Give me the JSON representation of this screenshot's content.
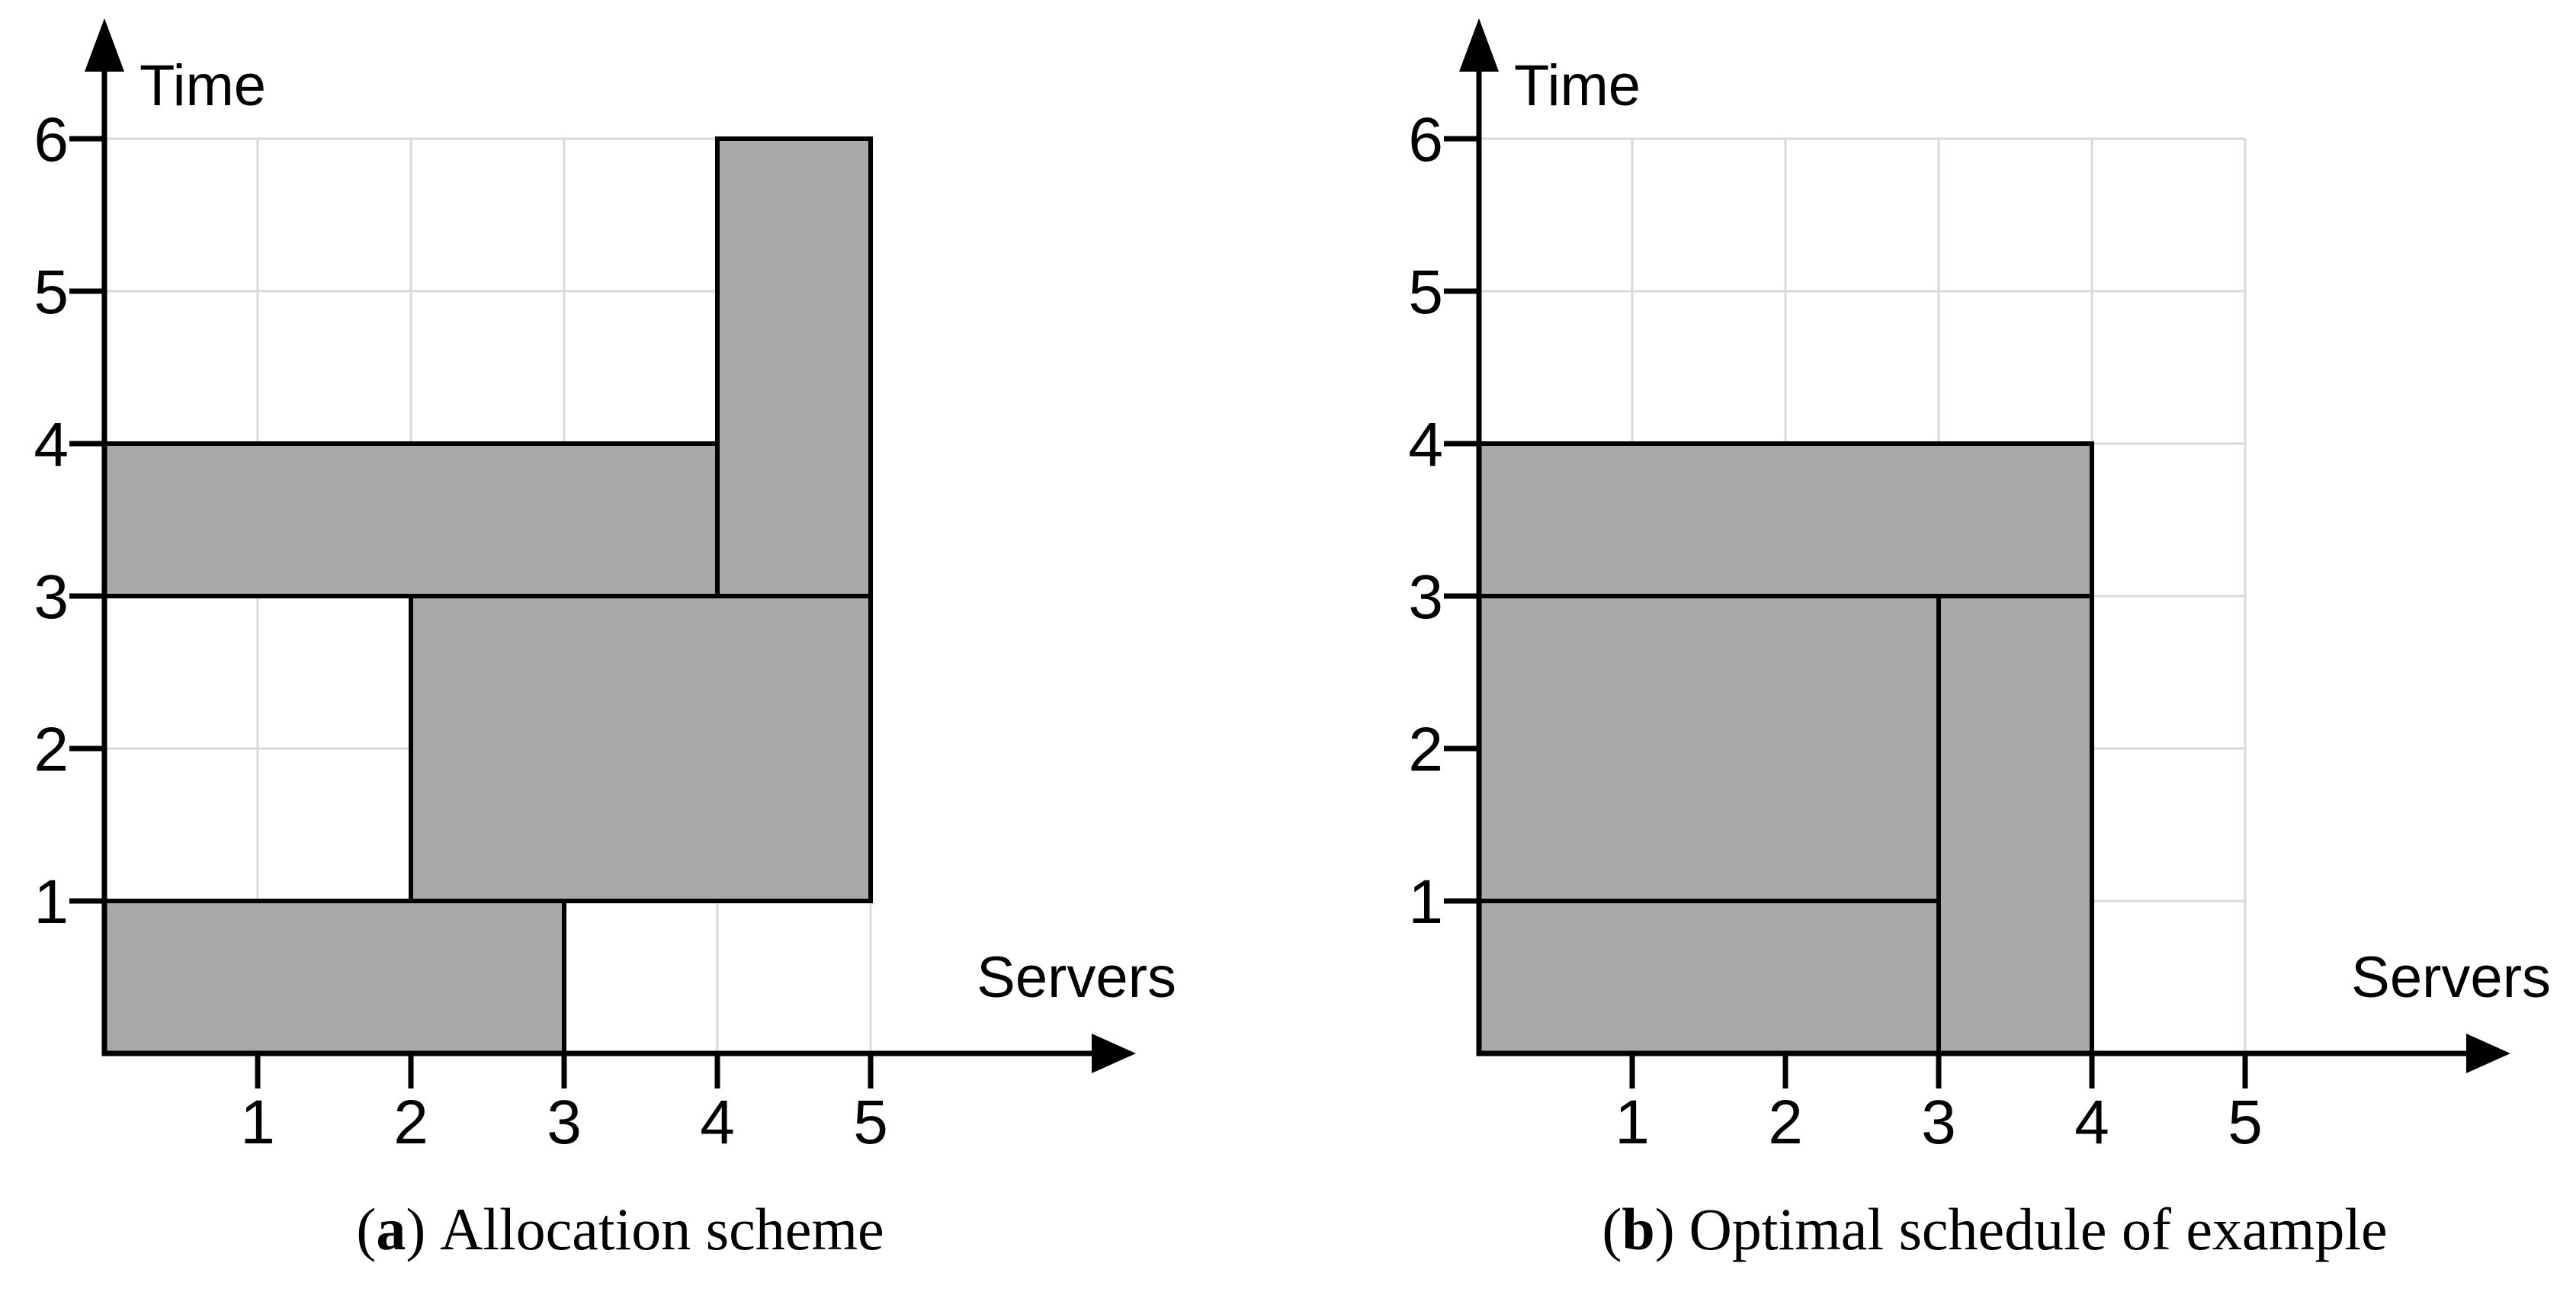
{
  "style": {
    "background": "#FFFFFF",
    "block_fill": "#A9A9A9",
    "block_border": "#000000",
    "grid_color": "#D9D9D9",
    "axis_color": "#000000",
    "text_color": "#000000"
  },
  "captions": [
    {
      "prefix": "(",
      "label": "a",
      "suffix": ")",
      "text": "Allocation scheme"
    },
    {
      "prefix": "(",
      "label": "b",
      "suffix": ")",
      "text": "Optimal schedule of example"
    }
  ],
  "chart_data": [
    {
      "id": "a",
      "type": "block-schedule",
      "title": "Allocation scheme",
      "xlabel": "Servers",
      "ylabel": "Time",
      "xlim": [
        0,
        5
      ],
      "ylim": [
        0,
        6
      ],
      "x_ticks": [
        1,
        2,
        3,
        4,
        5
      ],
      "y_ticks": [
        1,
        2,
        3,
        4,
        5,
        6
      ],
      "grid": true,
      "jobs": [
        {
          "x0": 0,
          "x1": 3,
          "t0": 0,
          "t1": 1
        },
        {
          "x0": 2,
          "x1": 5,
          "t0": 1,
          "t1": 3
        },
        {
          "x0": 0,
          "x1": 4,
          "t0": 3,
          "t1": 4
        },
        {
          "x0": 4,
          "x1": 5,
          "t0": 3,
          "t1": 6
        }
      ]
    },
    {
      "id": "b",
      "type": "block-schedule",
      "title": "Optimal schedule of example",
      "xlabel": "Servers",
      "ylabel": "Time",
      "xlim": [
        0,
        5
      ],
      "ylim": [
        0,
        6
      ],
      "x_ticks": [
        1,
        2,
        3,
        4,
        5
      ],
      "y_ticks": [
        1,
        2,
        3,
        4,
        5,
        6
      ],
      "grid": true,
      "jobs": [
        {
          "x0": 0,
          "x1": 3,
          "t0": 0,
          "t1": 1
        },
        {
          "x0": 0,
          "x1": 3,
          "t0": 1,
          "t1": 3
        },
        {
          "x0": 3,
          "x1": 4,
          "t0": 0,
          "t1": 3
        },
        {
          "x0": 0,
          "x1": 4,
          "t0": 3,
          "t1": 4
        }
      ]
    }
  ]
}
